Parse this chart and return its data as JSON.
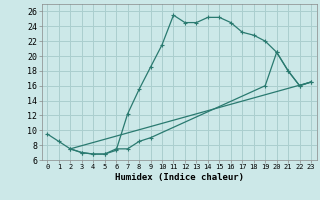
{
  "xlabel": "Humidex (Indice chaleur)",
  "bg_color": "#cce8e8",
  "grid_color": "#aacece",
  "line_color": "#2a7a70",
  "xlim": [
    -0.5,
    23.5
  ],
  "ylim": [
    6,
    27
  ],
  "xticks": [
    0,
    1,
    2,
    3,
    4,
    5,
    6,
    7,
    8,
    9,
    10,
    11,
    12,
    13,
    14,
    15,
    16,
    17,
    18,
    19,
    20,
    21,
    22,
    23
  ],
  "yticks": [
    6,
    8,
    10,
    12,
    14,
    16,
    18,
    20,
    22,
    24,
    26
  ],
  "line1_x": [
    0,
    1,
    2,
    3,
    4,
    5,
    6,
    7,
    8,
    9,
    10,
    11,
    12,
    13,
    14,
    15,
    16,
    17,
    18,
    19,
    20,
    21,
    22,
    23
  ],
  "line1_y": [
    9.5,
    8.5,
    7.5,
    7.0,
    6.8,
    6.8,
    7.3,
    12.2,
    15.5,
    18.5,
    21.5,
    25.5,
    24.5,
    24.5,
    25.2,
    25.2,
    24.5,
    23.2,
    22.8,
    22.0,
    20.5,
    18.0,
    16.0,
    16.5
  ],
  "line2_x": [
    2,
    3,
    4,
    5,
    6,
    7,
    8,
    9,
    19,
    20,
    21,
    22,
    23
  ],
  "line2_y": [
    7.5,
    7.0,
    6.8,
    6.8,
    7.5,
    7.5,
    8.5,
    9.0,
    16.0,
    20.5,
    18.0,
    16.0,
    16.5
  ],
  "line3_x": [
    2,
    23
  ],
  "line3_y": [
    7.5,
    16.5
  ]
}
